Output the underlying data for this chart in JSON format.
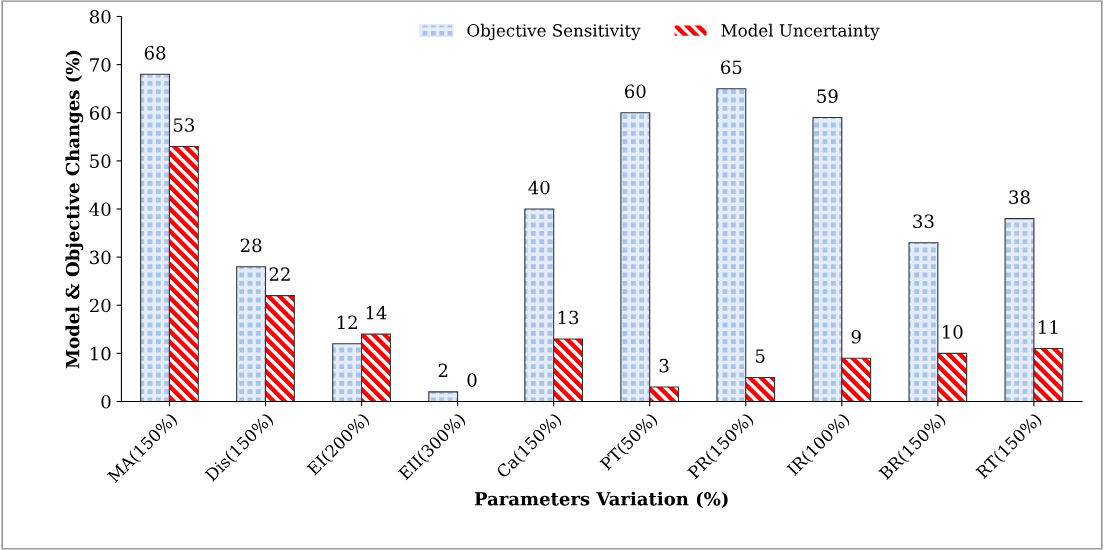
{
  "chart_data": {
    "type": "bar",
    "xlabel": "Parameters Variation (%)",
    "ylabel": "Model & Objective Changes (%)",
    "categories": [
      "MA(150%)",
      "Dis(150%)",
      "EI(200%)",
      "EII(300%)",
      "Ca(150%)",
      "PT(50%)",
      "PR(150%)",
      "IR(100%)",
      "BR(150%)",
      "RT(150%)"
    ],
    "series": [
      {
        "name": "Objective Sensitivity",
        "color": "#a9c4eb",
        "values": [
          68,
          28,
          12,
          2,
          40,
          60,
          65,
          59,
          33,
          38
        ]
      },
      {
        "name": "Model Uncertainty",
        "color": "#ff0000",
        "values": [
          53,
          22,
          14,
          0,
          13,
          3,
          5,
          9,
          10,
          11
        ]
      }
    ],
    "ylim": [
      0,
      80
    ],
    "yticks": [
      0,
      10,
      20,
      30,
      40,
      50,
      60,
      70,
      80
    ],
    "data_labels": true,
    "legend": "top",
    "grid": false
  }
}
